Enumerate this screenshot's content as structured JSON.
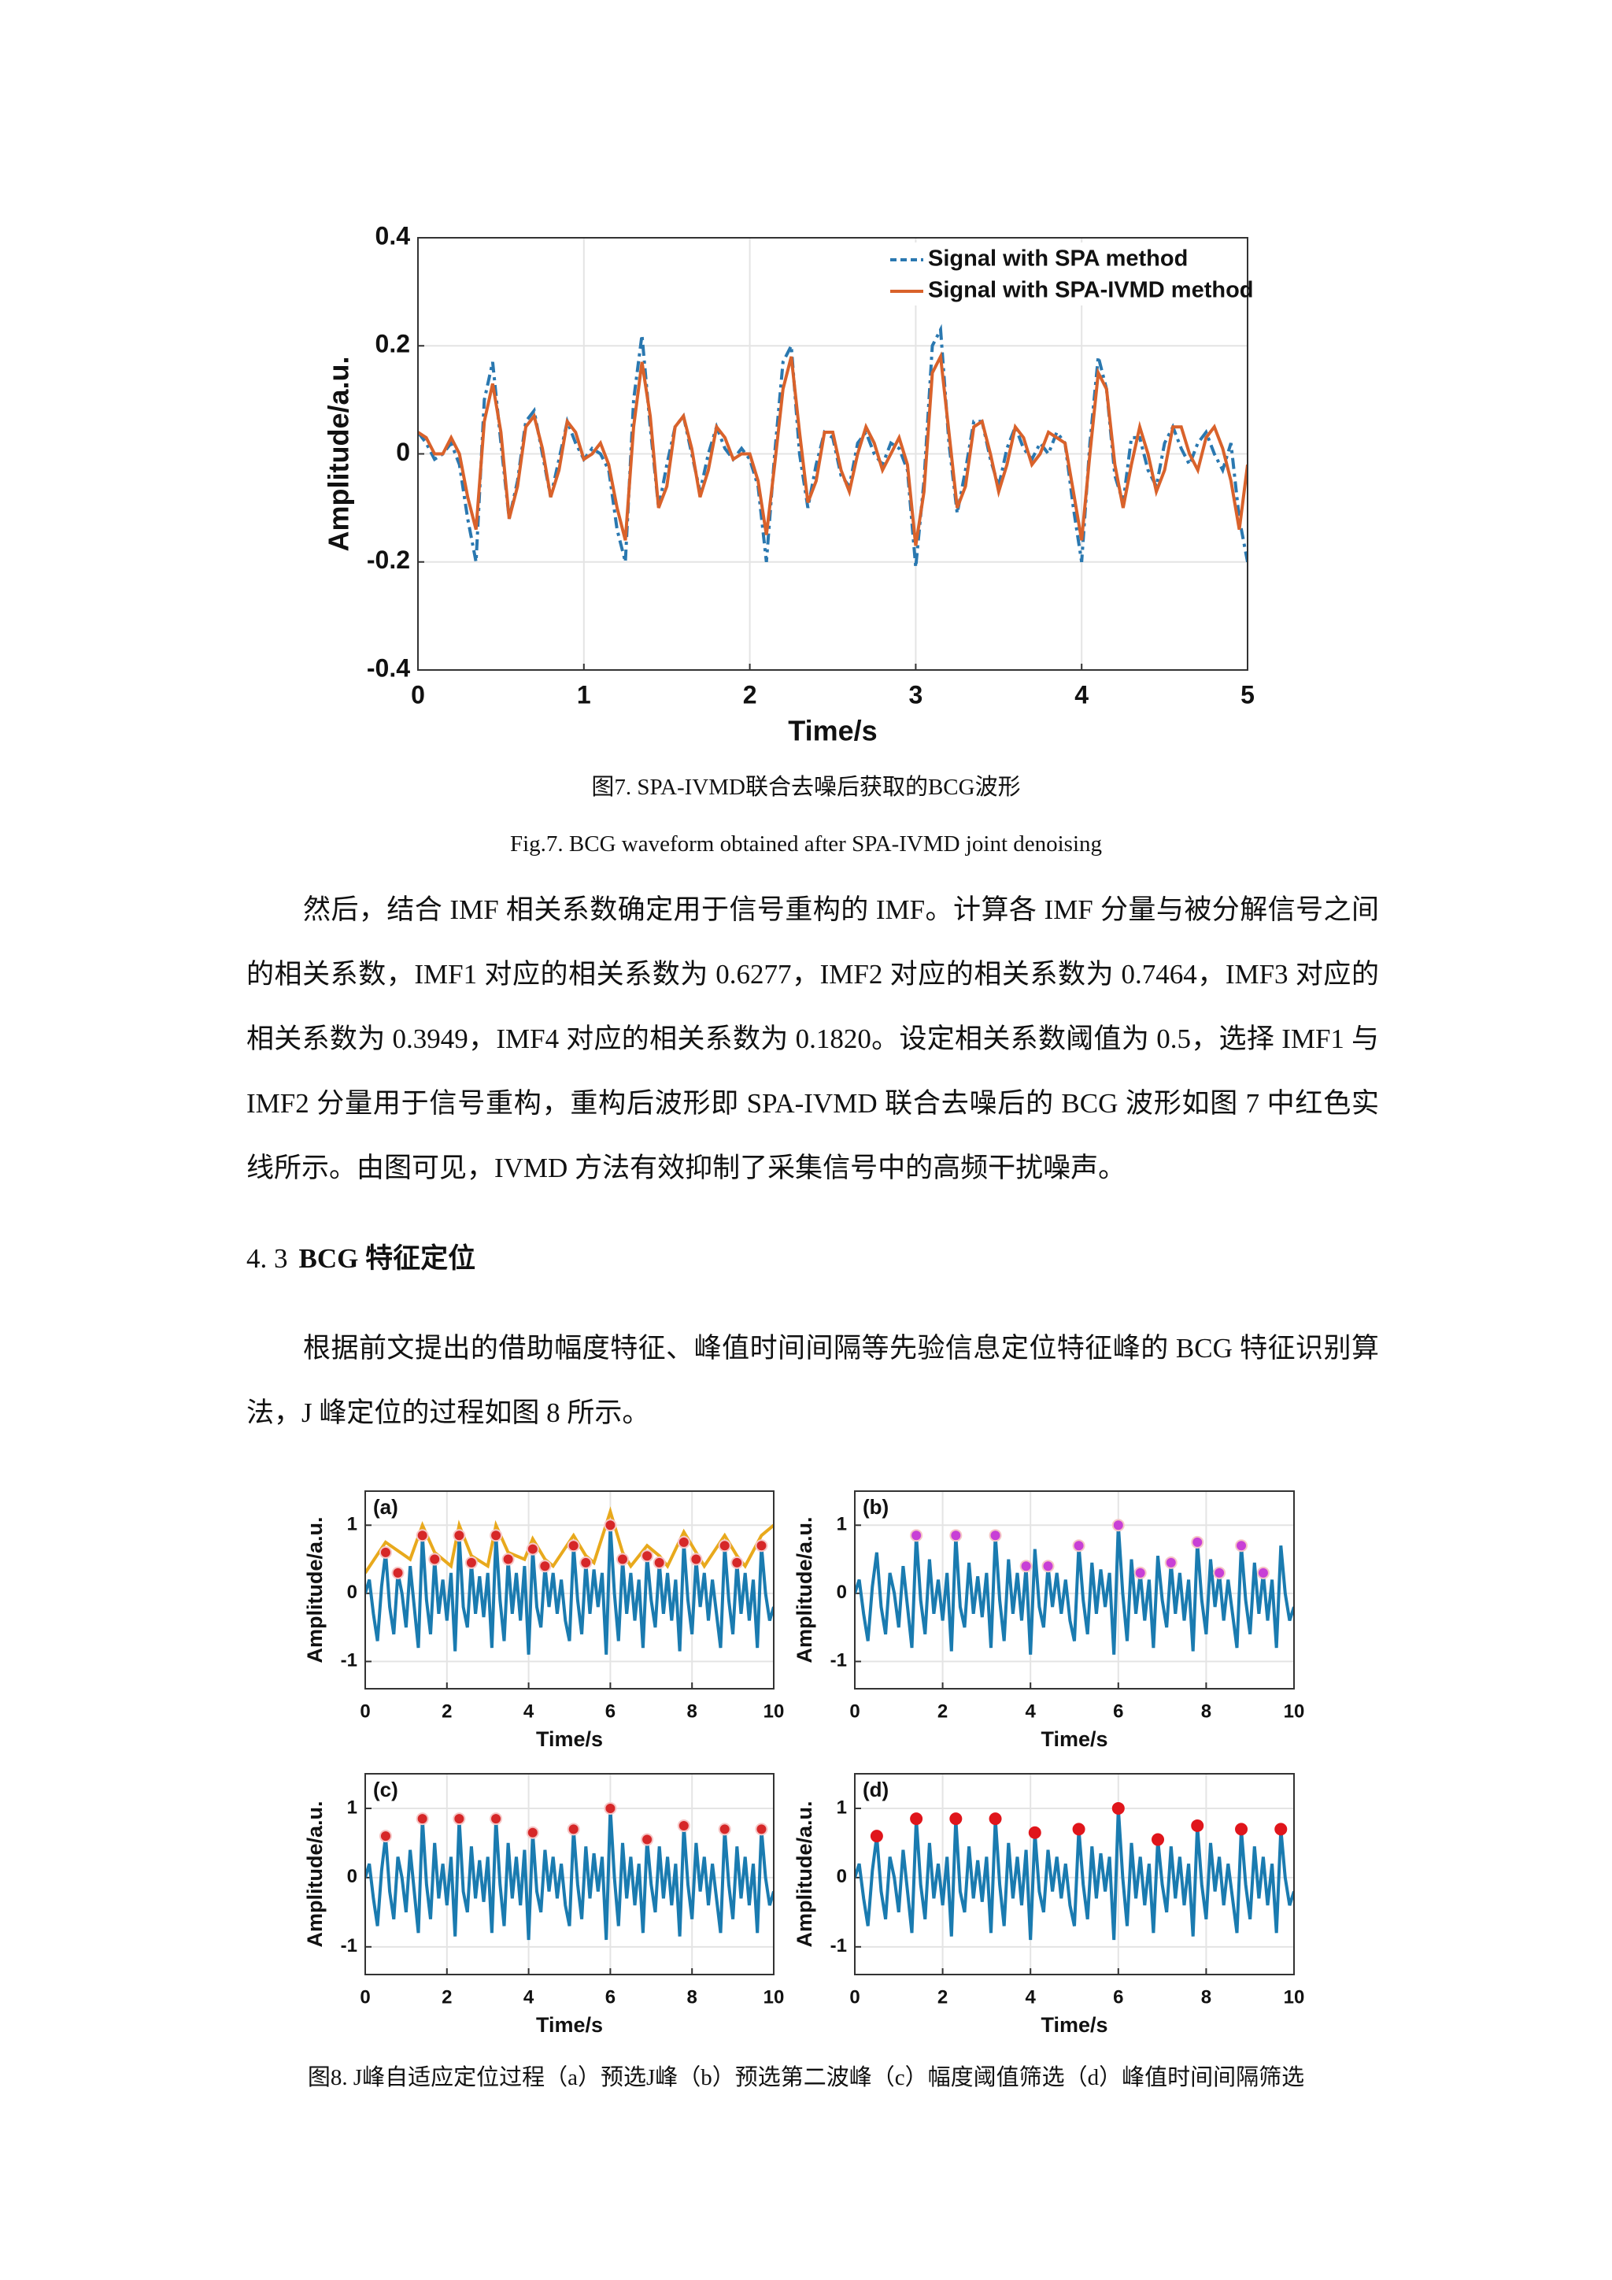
{
  "chart_data": [
    {
      "type": "line",
      "xlabel": "Time/s",
      "ylabel": "Amplitude/a.u.",
      "xlim": [
        0,
        5
      ],
      "ylim": [
        -0.4,
        0.4
      ],
      "xticks": [
        0,
        1,
        2,
        3,
        4,
        5
      ],
      "yticks": [
        -0.4,
        -0.2,
        0,
        0.2,
        0.4
      ],
      "grid": true,
      "legend": "upper right",
      "x": [
        0,
        0.05,
        0.1,
        0.15,
        0.2,
        0.25,
        0.3,
        0.35,
        0.4,
        0.45,
        0.5,
        0.55,
        0.6,
        0.65,
        0.7,
        0.75,
        0.8,
        0.85,
        0.9,
        0.95,
        1,
        1.05,
        1.1,
        1.15,
        1.2,
        1.25,
        1.3,
        1.35,
        1.4,
        1.45,
        1.5,
        1.55,
        1.6,
        1.65,
        1.7,
        1.75,
        1.8,
        1.85,
        1.9,
        1.95,
        2,
        2.05,
        2.1,
        2.15,
        2.2,
        2.25,
        2.3,
        2.35,
        2.4,
        2.45,
        2.5,
        2.55,
        2.6,
        2.65,
        2.7,
        2.75,
        2.8,
        2.85,
        2.9,
        2.95,
        3,
        3.05,
        3.1,
        3.15,
        3.2,
        3.25,
        3.3,
        3.35,
        3.4,
        3.45,
        3.5,
        3.55,
        3.6,
        3.65,
        3.7,
        3.75,
        3.8,
        3.85,
        3.9,
        3.95,
        4,
        4.05,
        4.1,
        4.15,
        4.2,
        4.25,
        4.3,
        4.35,
        4.4,
        4.45,
        4.5,
        4.55,
        4.6,
        4.65,
        4.7,
        4.75,
        4.8,
        4.85,
        4.9,
        4.95,
        5
      ],
      "series": [
        {
          "name": "Signal with SPA method",
          "color": "#2a78b0",
          "line_style": "dashed",
          "values": [
            0.04,
            0.02,
            -0.01,
            0,
            0.02,
            -0.02,
            -0.12,
            -0.2,
            0.1,
            0.17,
            0.02,
            -0.12,
            -0.05,
            0.06,
            0.08,
            0,
            -0.08,
            -0.01,
            0.06,
            0.02,
            -0.01,
            0.01,
            0,
            -0.03,
            -0.14,
            -0.2,
            0.1,
            0.22,
            0.05,
            -0.1,
            -0.02,
            0.05,
            0.07,
            0,
            -0.07,
            0,
            0.05,
            0.01,
            -0.01,
            0.01,
            -0.01,
            -0.06,
            -0.2,
            0,
            0.17,
            0.2,
            0,
            -0.1,
            -0.02,
            0.04,
            0.03,
            -0.04,
            -0.06,
            0.02,
            0.04,
            0,
            -0.02,
            0.02,
            0.01,
            -0.03,
            -0.21,
            -0.05,
            0.2,
            0.23,
            0.02,
            -0.11,
            -0.03,
            0.06,
            0.06,
            -0.01,
            -0.06,
            0.01,
            0.05,
            0.01,
            -0.01,
            0.02,
            0,
            0.04,
            0.02,
            -0.1,
            -0.2,
            0.02,
            0.18,
            0.12,
            -0.04,
            -0.09,
            0.03,
            0.03,
            -0.03,
            -0.06,
            0.02,
            0.05,
            0.01,
            -0.02,
            0.02,
            0.04,
            0,
            -0.03,
            0.02,
            -0.12,
            -0.2
          ]
        },
        {
          "name": "Signal with SPA-IVMD method",
          "color": "#d9622b",
          "line_style": "solid",
          "values": [
            0.04,
            0.03,
            0,
            0,
            0.03,
            0,
            -0.08,
            -0.14,
            0.06,
            0.13,
            0.04,
            -0.12,
            -0.06,
            0.05,
            0.07,
            0.01,
            -0.08,
            -0.03,
            0.06,
            0.04,
            -0.01,
            0,
            0.02,
            -0.02,
            -0.1,
            -0.16,
            0.05,
            0.17,
            0.07,
            -0.1,
            -0.06,
            0.05,
            0.07,
            0.01,
            -0.08,
            -0.03,
            0.05,
            0.03,
            -0.01,
            0,
            0,
            -0.05,
            -0.15,
            -0.02,
            0.12,
            0.18,
            0.04,
            -0.09,
            -0.05,
            0.04,
            0.04,
            -0.03,
            -0.07,
            0,
            0.05,
            0.02,
            -0.03,
            0,
            0.03,
            -0.02,
            -0.17,
            -0.07,
            0.15,
            0.18,
            0.04,
            -0.1,
            -0.06,
            0.05,
            0.06,
            0,
            -0.07,
            -0.02,
            0.05,
            0.03,
            -0.02,
            0,
            0.04,
            0.03,
            0.02,
            -0.07,
            -0.16,
            0,
            0.15,
            0.12,
            -0.02,
            -0.1,
            -0.02,
            0.05,
            0,
            -0.07,
            -0.03,
            0.05,
            0.05,
            0,
            -0.03,
            0.03,
            0.05,
            0.01,
            -0.05,
            -0.14,
            -0.02
          ]
        }
      ],
      "caption": "图7. SPA-IVMD联合去噪后获取的BCG波形",
      "caption_en": "Fig.7. BCG waveform obtained after SPA-IVMD joint denoising"
    },
    {
      "type": "line-panels",
      "xlabel": "Time/s",
      "ylabel": "Amplitude/a.u.",
      "xlim": [
        0,
        10
      ],
      "ylim": [
        -1.4,
        1.5
      ],
      "xticks": [
        0,
        2,
        4,
        6,
        8,
        10
      ],
      "yticks": [
        -1,
        0,
        1
      ],
      "grid": true,
      "color": "#1a7bb0",
      "x": [
        0,
        0.1,
        0.2,
        0.3,
        0.4,
        0.5,
        0.6,
        0.7,
        0.8,
        0.9,
        1,
        1.1,
        1.2,
        1.3,
        1.4,
        1.5,
        1.6,
        1.7,
        1.8,
        1.9,
        2,
        2.1,
        2.2,
        2.3,
        2.4,
        2.5,
        2.6,
        2.7,
        2.8,
        2.9,
        3,
        3.1,
        3.2,
        3.3,
        3.4,
        3.5,
        3.6,
        3.7,
        3.8,
        3.9,
        4,
        4.1,
        4.2,
        4.3,
        4.4,
        4.5,
        4.6,
        4.7,
        4.8,
        4.9,
        5,
        5.1,
        5.2,
        5.3,
        5.4,
        5.5,
        5.6,
        5.7,
        5.8,
        5.9,
        6,
        6.1,
        6.2,
        6.3,
        6.4,
        6.5,
        6.6,
        6.7,
        6.8,
        6.9,
        7,
        7.1,
        7.2,
        7.3,
        7.4,
        7.5,
        7.6,
        7.7,
        7.8,
        7.9,
        8,
        8.1,
        8.2,
        8.3,
        8.4,
        8.5,
        8.6,
        8.7,
        8.8,
        8.9,
        9,
        9.1,
        9.2,
        9.3,
        9.4,
        9.5,
        9.6,
        9.7,
        9.8,
        9.9,
        10
      ],
      "values": [
        0,
        0.2,
        -0.3,
        -0.7,
        0.1,
        0.6,
        -0.2,
        -0.6,
        0.3,
        0,
        -0.5,
        0.4,
        -0.2,
        -0.8,
        0.85,
        -0.1,
        -0.6,
        0.5,
        -0.3,
        0.2,
        -0.4,
        0.3,
        -0.85,
        0.85,
        -0.2,
        -0.5,
        0.45,
        -0.3,
        0.25,
        -0.35,
        0.3,
        -0.8,
        0.85,
        -0.1,
        -0.7,
        0.5,
        -0.3,
        0.3,
        -0.4,
        0.4,
        -0.9,
        0.65,
        -0.2,
        -0.5,
        0.4,
        -0.2,
        0.3,
        -0.3,
        0.2,
        -0.4,
        -0.7,
        0.7,
        -0.1,
        -0.6,
        0.45,
        -0.3,
        0.35,
        -0.2,
        0.3,
        -0.9,
        1,
        0,
        -0.7,
        0.5,
        -0.3,
        0.3,
        -0.4,
        0.2,
        -0.8,
        0.55,
        -0.1,
        -0.5,
        0.45,
        -0.3,
        0.3,
        -0.4,
        0.2,
        -0.85,
        0.75,
        -0.1,
        -0.6,
        0.5,
        -0.2,
        0.3,
        -0.4,
        0.2,
        -0.3,
        -0.8,
        0.7,
        -0.1,
        -0.6,
        0.45,
        -0.3,
        0.3,
        -0.4,
        0.2,
        -0.8,
        0.7,
        0,
        -0.4,
        -0.2
      ],
      "panels": [
        {
          "label": "(a)",
          "envelope": {
            "color": "#e8a91c",
            "x": [
              0,
              0.5,
              1.1,
              1.4,
              1.7,
              2.1,
              2.3,
              2.6,
              3,
              3.2,
              3.5,
              3.9,
              4.1,
              4.4,
              4.6,
              5.1,
              5.4,
              5.6,
              6,
              6.3,
              6.5,
              6.9,
              7.2,
              7.4,
              7.8,
              8.1,
              8.3,
              8.8,
              9.1,
              9.3,
              9.7,
              10
            ],
            "values": [
              0.3,
              0.75,
              0.5,
              1,
              0.6,
              0.4,
              1,
              0.55,
              0.4,
              1,
              0.6,
              0.5,
              0.8,
              0.5,
              0.4,
              0.85,
              0.55,
              0.45,
              1.2,
              0.6,
              0.4,
              0.7,
              0.55,
              0.4,
              0.9,
              0.6,
              0.4,
              0.85,
              0.55,
              0.4,
              0.85,
              1
            ]
          },
          "peaks": {
            "color": "#d62728",
            "x": [
              0.5,
              0.8,
              1.4,
              1.7,
              2.3,
              2.6,
              3.2,
              3.5,
              4.1,
              4.4,
              5.1,
              5.4,
              6,
              6.3,
              6.9,
              7.2,
              7.8,
              8.1,
              8.8,
              9.1,
              9.7
            ],
            "values": [
              0.6,
              0.3,
              0.85,
              0.5,
              0.85,
              0.45,
              0.85,
              0.5,
              0.65,
              0.4,
              0.7,
              0.45,
              1,
              0.5,
              0.55,
              0.45,
              0.75,
              0.5,
              0.7,
              0.45,
              0.7
            ]
          }
        },
        {
          "label": "(b)",
          "peaks": {
            "color": "#c83fd6",
            "x": [
              1.4,
              2.3,
              3.2,
              3.9,
              4.4,
              5.1,
              6,
              6.5,
              7.2,
              7.8,
              8.3,
              8.8,
              9.3
            ],
            "values": [
              0.85,
              0.85,
              0.85,
              0.4,
              0.4,
              0.7,
              1,
              0.3,
              0.45,
              0.75,
              0.3,
              0.7,
              0.3
            ]
          }
        },
        {
          "label": "(c)",
          "peaks": {
            "color": "#d62728",
            "x": [
              0.5,
              1.4,
              2.3,
              3.2,
              4.1,
              5.1,
              6,
              6.9,
              7.8,
              8.8,
              9.7
            ],
            "values": [
              0.6,
              0.85,
              0.85,
              0.85,
              0.65,
              0.7,
              1,
              0.55,
              0.75,
              0.7,
              0.7
            ]
          }
        },
        {
          "label": "(d)",
          "peaks": {
            "color": "#e0151b",
            "x": [
              0.5,
              1.4,
              2.3,
              3.2,
              4.1,
              5.1,
              6,
              6.9,
              7.8,
              8.8,
              9.7
            ],
            "values": [
              0.6,
              0.85,
              0.85,
              0.85,
              0.65,
              0.7,
              1,
              0.55,
              0.75,
              0.7,
              0.7
            ]
          }
        }
      ],
      "caption": "图8. J峰自适应定位过程（a）预选J峰（b）预选第二波峰（c）幅度阈值筛选（d）峰值时间间隔筛选"
    }
  ],
  "paragraphs": [
    "然后，结合 IMF 相关系数确定用于信号重构的 IMF。计算各 IMF 分量与被分解信号之间的相关系数，IMF1 对应的相关系数为 0.6277，IMF2 对应的相关系数为 0.7464，IMF3 对应的相关系数为 0.3949，IMF4 对应的相关系数为 0.1820。设定相关系数阈值为 0.5，选择 IMF1 与 IMF2 分量用于信号重构，重构后波形即 SPA-IVMD 联合去噪后的 BCG 波形如图 7 中红色实线所示。由图可见，IVMD 方法有效抑制了采集信号中的高频干扰噪声。",
    "根据前文提出的借助幅度特征、峰值时间间隔等先验信息定位特征峰的 BCG 特征识别算法，J 峰定位的过程如图 8 所示。"
  ],
  "heading": {
    "number": "4. 3",
    "text": "BCG 特征定位"
  }
}
